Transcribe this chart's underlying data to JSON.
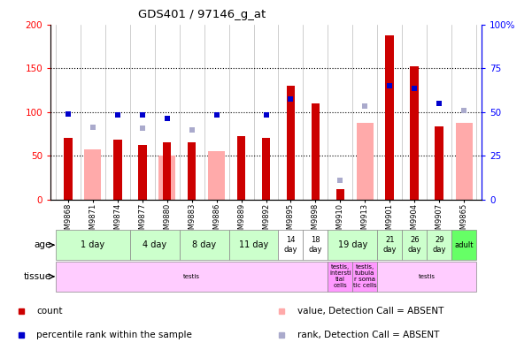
{
  "title": "GDS401 / 97146_g_at",
  "samples": [
    "GSM9868",
    "GSM9871",
    "GSM9874",
    "GSM9877",
    "GSM9880",
    "GSM9883",
    "GSM9886",
    "GSM9889",
    "GSM9892",
    "GSM9895",
    "GSM9898",
    "GSM9910",
    "GSM9913",
    "GSM9901",
    "GSM9904",
    "GSM9907",
    "GSM9865"
  ],
  "count_values": [
    70,
    0,
    68,
    62,
    65,
    65,
    0,
    72,
    70,
    130,
    110,
    12,
    0,
    188,
    152,
    84,
    0
  ],
  "percentile_values": [
    98,
    0,
    97,
    97,
    93,
    0,
    97,
    0,
    97,
    115,
    0,
    0,
    0,
    130,
    127,
    110,
    0
  ],
  "absent_value_values": [
    0,
    57,
    0,
    0,
    50,
    0,
    55,
    0,
    0,
    0,
    0,
    0,
    88,
    0,
    0,
    0,
    88
  ],
  "absent_rank_values": [
    0,
    83,
    0,
    82,
    0,
    80,
    0,
    0,
    0,
    0,
    0,
    22,
    107,
    0,
    0,
    0,
    102
  ],
  "has_count": [
    true,
    false,
    true,
    true,
    true,
    true,
    false,
    true,
    true,
    true,
    true,
    true,
    false,
    true,
    true,
    true,
    false
  ],
  "has_percentile": [
    true,
    false,
    true,
    true,
    true,
    false,
    true,
    false,
    true,
    true,
    false,
    false,
    false,
    true,
    true,
    true,
    false
  ],
  "has_absent_value": [
    false,
    true,
    false,
    false,
    true,
    false,
    true,
    false,
    false,
    false,
    false,
    false,
    true,
    false,
    false,
    false,
    true
  ],
  "has_absent_rank": [
    false,
    true,
    false,
    true,
    false,
    true,
    false,
    false,
    false,
    false,
    false,
    true,
    true,
    false,
    false,
    false,
    true
  ],
  "age_groups": [
    {
      "label": "1 day",
      "start": 0,
      "end": 3,
      "color": "#ccffcc"
    },
    {
      "label": "4 day",
      "start": 3,
      "end": 5,
      "color": "#ccffcc"
    },
    {
      "label": "8 day",
      "start": 5,
      "end": 7,
      "color": "#ccffcc"
    },
    {
      "label": "11 day",
      "start": 7,
      "end": 9,
      "color": "#ccffcc"
    },
    {
      "label": "14\nday",
      "start": 9,
      "end": 10,
      "color": "#ffffff"
    },
    {
      "label": "18\nday",
      "start": 10,
      "end": 11,
      "color": "#ffffff"
    },
    {
      "label": "19 day",
      "start": 11,
      "end": 13,
      "color": "#ccffcc"
    },
    {
      "label": "21\nday",
      "start": 13,
      "end": 14,
      "color": "#ccffcc"
    },
    {
      "label": "26\nday",
      "start": 14,
      "end": 15,
      "color": "#ccffcc"
    },
    {
      "label": "29\nday",
      "start": 15,
      "end": 16,
      "color": "#ccffcc"
    },
    {
      "label": "adult",
      "start": 16,
      "end": 17,
      "color": "#66ff66"
    }
  ],
  "tissue_groups": [
    {
      "label": "testis",
      "start": 0,
      "end": 11,
      "color": "#ffccff"
    },
    {
      "label": "testis,\nintersti\ntial\ncells",
      "start": 11,
      "end": 12,
      "color": "#ff99ff"
    },
    {
      "label": "testis,\ntubula\nr soma\ntic cells",
      "start": 12,
      "end": 13,
      "color": "#ff99ff"
    },
    {
      "label": "testis",
      "start": 13,
      "end": 17,
      "color": "#ffccff"
    }
  ],
  "color_count": "#cc0000",
  "color_percentile": "#0000cc",
  "color_absent_value": "#ffaaaa",
  "color_absent_rank": "#aaaacc"
}
